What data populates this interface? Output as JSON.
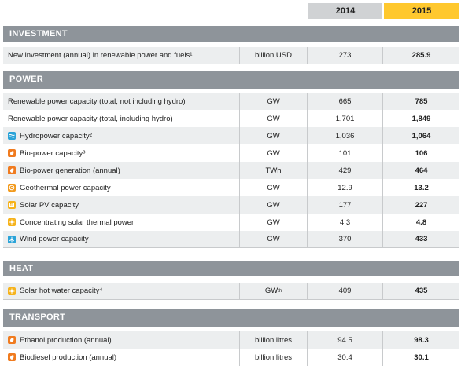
{
  "years": [
    "2014",
    "2015"
  ],
  "sections": [
    {
      "title": "INVESTMENT"
    },
    {
      "title": "POWER"
    },
    {
      "title": "HEAT"
    },
    {
      "title": "TRANSPORT"
    }
  ],
  "rows": [
    {
      "label": "New investment (annual) in renewable power and fuels¹",
      "unit": "billion USD",
      "v2014": "273",
      "v2015": "285.9"
    },
    {
      "label": "Renewable power capacity (total, not including hydro)",
      "unit": "GW",
      "v2014": "665",
      "v2015": "785"
    },
    {
      "label": "Renewable power capacity (total, including hydro)",
      "unit": "GW",
      "v2014": "1,701",
      "v2015": "1,849"
    },
    {
      "label": "Hydropower capacity²",
      "unit": "GW",
      "v2014": "1,036",
      "v2015": "1,064",
      "icon": "hydro-icon",
      "icon_color": "#2aa3d8"
    },
    {
      "label": "Bio-power capacity³",
      "unit": "GW",
      "v2014": "101",
      "v2015": "106",
      "icon": "biopower-icon",
      "icon_color": "#f07b1f"
    },
    {
      "label": "Bio-power generation (annual)",
      "unit": "TWh",
      "v2014": "429",
      "v2015": "464",
      "icon": "biopower-icon",
      "icon_color": "#f07b1f"
    },
    {
      "label": "Geothermal power capacity",
      "unit": "GW",
      "v2014": "12.9",
      "v2015": "13.2",
      "icon": "geothermal-icon",
      "icon_color": "#f29a1d"
    },
    {
      "label": "Solar PV capacity",
      "unit": "GW",
      "v2014": "177",
      "v2015": "227",
      "icon": "solar-pv-icon",
      "icon_color": "#f6b31c"
    },
    {
      "label": "Concentrating solar thermal power",
      "unit": "GW",
      "v2014": "4.3",
      "v2015": "4.8",
      "icon": "csp-icon",
      "icon_color": "#f6b31c"
    },
    {
      "label": "Wind power capacity",
      "unit": "GW",
      "v2014": "370",
      "v2015": "433",
      "icon": "wind-icon",
      "icon_color": "#2aa3d8"
    },
    {
      "label": "Solar hot water capacity⁴",
      "unit": "GW",
      "unit_sub": "th",
      "v2014": "409",
      "v2015": "435",
      "icon": "solar-thermal-icon",
      "icon_color": "#f6b31c"
    },
    {
      "label": "Ethanol production (annual)",
      "unit": "billion litres",
      "v2014": "94.5",
      "v2015": "98.3",
      "icon": "biofuel-icon",
      "icon_color": "#f07b1f"
    },
    {
      "label": "Biodiesel production (annual)",
      "unit": "billion litres",
      "v2014": "30.4",
      "v2015": "30.1",
      "icon": "biofuel-icon",
      "icon_color": "#f07b1f"
    }
  ]
}
